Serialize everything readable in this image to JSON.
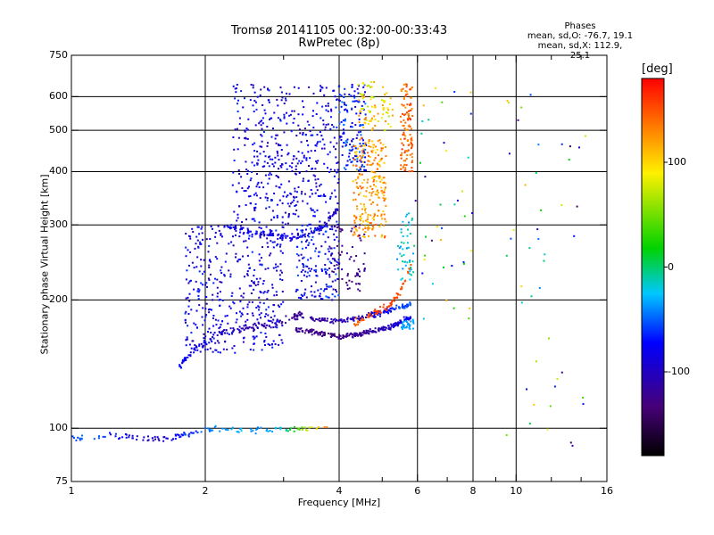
{
  "chart_data": {
    "type": "scatter",
    "title": "Tromsø 20141105 00:32:00-00:33:43",
    "subtitle": "RwPretec (8p)",
    "stats": {
      "heading": "Phases",
      "o_line": "mean, sd,O: -76.7, 19.1",
      "x_line": "mean, sd,X: 112.9, 25.1"
    },
    "xlabel": "Frequency [MHz]",
    "ylabel": "Stationary phase Virtual Height [km]",
    "x_scale": "log",
    "y_scale": "log",
    "xlim": [
      1,
      16
    ],
    "ylim": [
      75,
      750
    ],
    "x_ticks": [
      1,
      2,
      4,
      6,
      8,
      10,
      16
    ],
    "x_tick_labels": [
      "1",
      "2",
      "4",
      "6",
      "8",
      "10",
      "16"
    ],
    "x_minor_ticks": [
      3,
      5,
      7,
      9,
      12,
      14
    ],
    "x_grid": [
      2,
      4,
      6,
      8,
      10
    ],
    "y_ticks": [
      75,
      100,
      200,
      300,
      400,
      500,
      600,
      750
    ],
    "y_tick_labels": [
      "75",
      "100",
      "200",
      "300",
      "400",
      "500",
      "600",
      "750"
    ],
    "y_grid": [
      100,
      200,
      300,
      400,
      500,
      600
    ],
    "grid": true,
    "colorbar": {
      "label": "[deg]",
      "range": [
        -180,
        180
      ],
      "ticks": [
        100,
        0,
        -100
      ],
      "tick_labels": [
        "100",
        "0",
        "-100"
      ]
    },
    "clusters": [
      {
        "kind": "trace",
        "f": [
          1.0,
          1.1,
          1.2,
          1.3,
          1.4,
          1.5,
          1.6,
          1.7,
          1.8,
          1.9,
          2.0,
          2.2,
          2.4,
          2.6,
          2.8,
          3.0,
          3.2,
          3.5,
          3.8
        ],
        "h": [
          95,
          95,
          96,
          96,
          95,
          94,
          94,
          95,
          97,
          98,
          99,
          100,
          99,
          99,
          99,
          100,
          99,
          100,
          100
        ],
        "phase": [
          -60,
          -40,
          -60,
          -80,
          -90,
          -100,
          -95,
          -80,
          -60,
          -60,
          -40,
          -40,
          -30,
          -40,
          -30,
          -20,
          30,
          90,
          140
        ],
        "n": 140,
        "spread": 0.025
      },
      {
        "kind": "trace",
        "f": [
          1.75,
          1.85,
          2.0,
          2.2,
          2.5,
          2.8,
          3.1,
          3.3
        ],
        "h": [
          140,
          150,
          160,
          168,
          172,
          175,
          180,
          185
        ],
        "phase": [
          -70,
          -80,
          -90,
          -100,
          -110,
          -110,
          -120,
          -120
        ],
        "n": 140,
        "spread": 0.03
      },
      {
        "kind": "trace",
        "f": [
          3.2,
          3.5,
          3.8,
          4.0,
          4.3,
          4.6,
          4.9,
          5.2,
          5.5,
          5.8
        ],
        "h": [
          170,
          168,
          166,
          164,
          165,
          168,
          170,
          172,
          178,
          182
        ],
        "phase": [
          -120,
          -125,
          -130,
          -130,
          -120,
          -120,
          -110,
          -100,
          -90,
          -80
        ],
        "n": 220,
        "spread": 0.02
      },
      {
        "kind": "trace",
        "f": [
          3.3,
          3.6,
          3.9,
          4.2,
          4.5,
          4.8,
          5.1,
          5.4,
          5.8
        ],
        "h": [
          182,
          180,
          178,
          180,
          182,
          185,
          188,
          192,
          195
        ],
        "phase": [
          -110,
          -115,
          -110,
          -105,
          -100,
          -90,
          -80,
          -60,
          -50
        ],
        "n": 150,
        "spread": 0.02
      },
      {
        "kind": "trace",
        "f": [
          4.3,
          4.6,
          4.9,
          5.2,
          5.5,
          5.8
        ],
        "h": [
          175,
          182,
          188,
          195,
          210,
          240
        ],
        "phase": [
          140,
          150,
          155,
          160,
          150,
          150
        ],
        "n": 70,
        "spread": 0.03
      },
      {
        "kind": "trace",
        "f": [
          2.2,
          2.5,
          2.8,
          3.1,
          3.4,
          3.7,
          4.0
        ],
        "h": [
          300,
          290,
          285,
          280,
          285,
          300,
          330
        ],
        "phase": [
          -80,
          -80,
          -85,
          -85,
          -90,
          -90,
          -95
        ],
        "n": 130,
        "spread": 0.025
      },
      {
        "kind": "blob",
        "f": [
          1.8,
          3.0
        ],
        "h": [
          150,
          300
        ],
        "phase": [
          -110,
          -60
        ],
        "n": 420
      },
      {
        "kind": "blob",
        "f": [
          2.3,
          4.0
        ],
        "h": [
          300,
          640
        ],
        "phase": [
          -110,
          -60
        ],
        "n": 460
      },
      {
        "kind": "blob",
        "f": [
          3.2,
          4.0
        ],
        "h": [
          200,
          300
        ],
        "phase": [
          -100,
          -50
        ],
        "n": 160
      },
      {
        "kind": "blob",
        "f": [
          4.0,
          4.6
        ],
        "h": [
          400,
          640
        ],
        "phase": [
          -100,
          -40
        ],
        "n": 150
      },
      {
        "kind": "blob",
        "f": [
          4.3,
          5.1
        ],
        "h": [
          280,
          480
        ],
        "phase": [
          95,
          150
        ],
        "n": 240
      },
      {
        "kind": "blob",
        "f": [
          4.4,
          5.3
        ],
        "h": [
          500,
          650
        ],
        "phase": [
          60,
          130
        ],
        "n": 80
      },
      {
        "kind": "blob",
        "f": [
          5.5,
          5.85
        ],
        "h": [
          400,
          650
        ],
        "phase": [
          120,
          165
        ],
        "n": 120
      },
      {
        "kind": "blob",
        "f": [
          5.4,
          5.9
        ],
        "h": [
          220,
          320
        ],
        "phase": [
          -40,
          0
        ],
        "n": 50
      },
      {
        "kind": "blob",
        "f": [
          5.5,
          5.9
        ],
        "h": [
          170,
          180
        ],
        "phase": [
          -40,
          -30
        ],
        "n": 30
      },
      {
        "kind": "blob",
        "f": [
          3.8,
          4.6
        ],
        "h": [
          210,
          300
        ],
        "phase": [
          -140,
          -110
        ],
        "n": 70
      },
      {
        "kind": "blob",
        "f": [
          5.8,
          8.0
        ],
        "h": [
          180,
          650
        ],
        "phase": [
          -130,
          120
        ],
        "n": 40
      },
      {
        "kind": "blob",
        "f": [
          9.3,
          14.5
        ],
        "h": [
          90,
          620
        ],
        "phase": [
          -150,
          130
        ],
        "n": 45
      }
    ]
  }
}
